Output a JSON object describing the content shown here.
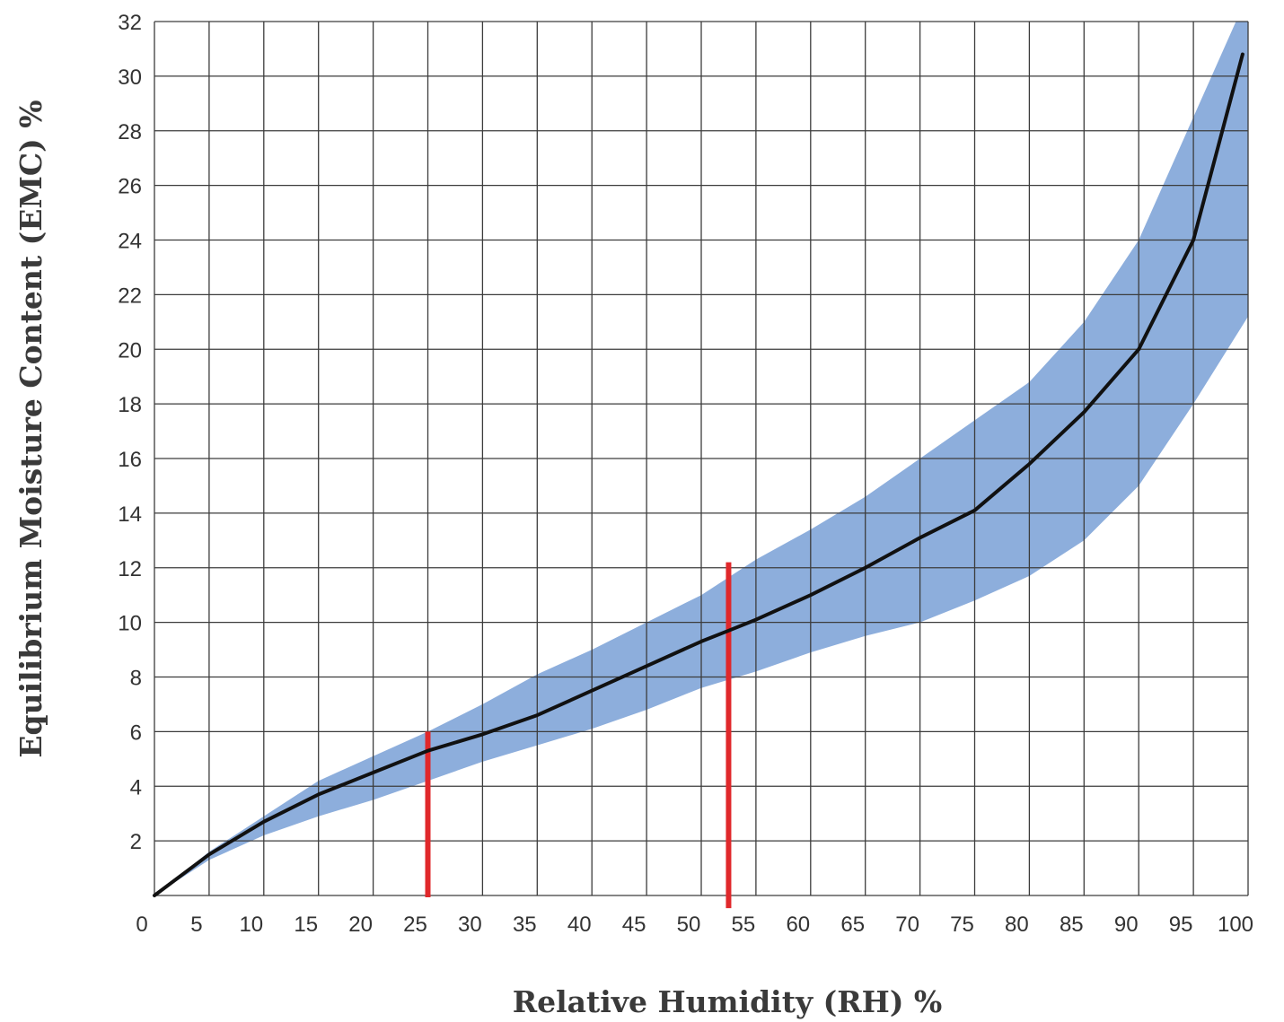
{
  "chart_data": {
    "type": "line",
    "title": "",
    "xlabel": "Relative Humidity (RH) %",
    "ylabel": "Equilibrium Moisture Content (EMC) %",
    "xlim": [
      0,
      100
    ],
    "ylim": [
      0,
      32
    ],
    "x_ticks": [
      0,
      5,
      10,
      15,
      20,
      25,
      30,
      35,
      40,
      45,
      50,
      55,
      60,
      65,
      70,
      75,
      80,
      85,
      90,
      95,
      100
    ],
    "y_ticks": [
      2,
      4,
      6,
      8,
      10,
      12,
      14,
      16,
      18,
      20,
      22,
      24,
      26,
      28,
      30,
      32
    ],
    "x_tick_labels": [
      "0",
      "5",
      "10",
      "15",
      "20",
      "25",
      "30",
      "35",
      "40",
      "45",
      "50",
      "55",
      "60",
      "65",
      "70",
      "75",
      "80",
      "85",
      "90",
      "95",
      "100"
    ],
    "y_tick_labels": [
      "2",
      "4",
      "6",
      "8",
      "10",
      "12",
      "14",
      "16",
      "18",
      "20",
      "22",
      "24",
      "26",
      "28",
      "30",
      "32"
    ],
    "grid": true,
    "series": [
      {
        "x": [
          0,
          5,
          10,
          15,
          20,
          25,
          30,
          35,
          40,
          45,
          50,
          52.5,
          55,
          60,
          65,
          70,
          75,
          80,
          85,
          90,
          95,
          99.5
        ],
        "y": [
          0,
          1.5,
          2.7,
          3.7,
          4.5,
          5.3,
          5.9,
          6.6,
          7.5,
          8.4,
          9.3,
          9.7,
          10.1,
          11.0,
          12.0,
          13.1,
          14.1,
          15.8,
          17.7,
          20.0,
          24.0,
          30.8
        ],
        "color": "#111111"
      }
    ],
    "band": {
      "color": "#8daedc",
      "x": [
        0,
        5,
        10,
        15,
        20,
        25,
        30,
        35,
        40,
        45,
        50,
        55,
        60,
        65,
        70,
        75,
        80,
        85,
        90,
        95,
        100
      ],
      "upper": [
        0,
        1.6,
        2.9,
        4.2,
        5.1,
        6.0,
        7.0,
        8.1,
        9.0,
        10.0,
        11.0,
        12.3,
        13.4,
        14.6,
        16.0,
        17.4,
        18.8,
        21.0,
        24.0,
        28.5,
        33.0
      ],
      "lower": [
        0,
        1.3,
        2.2,
        2.9,
        3.5,
        4.2,
        4.9,
        5.5,
        6.1,
        6.8,
        7.6,
        8.2,
        8.9,
        9.5,
        10.0,
        10.8,
        11.7,
        13.0,
        15.0,
        18.0,
        21.2
      ]
    },
    "markers": [
      {
        "x": 25,
        "y_from": 0,
        "y_to": 6,
        "color": "#e0282b"
      },
      {
        "x": 52.5,
        "y_from": -0.4,
        "y_to": 12.2,
        "color": "#e0282b"
      }
    ]
  }
}
